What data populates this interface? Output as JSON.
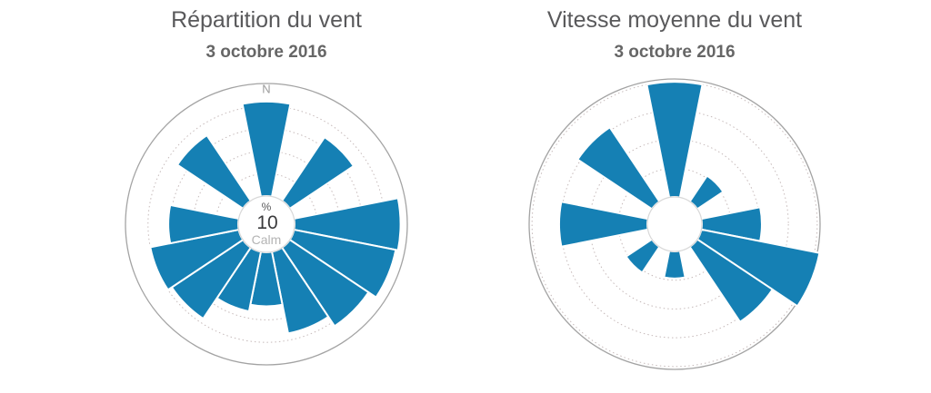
{
  "colors": {
    "background": "#ffffff",
    "sector_fill": "#1580b4",
    "outer_circle_stroke": "#a3a3a3",
    "grid_dotted_stroke": "#c6baba",
    "calm_circle_stroke": "#d8d8d8",
    "title_text": "#59595b",
    "subtitle_text": "#666666",
    "north_label_text": "#9b9b9b",
    "center_value_text": "#3a3a3c",
    "calm_label_text": "#b4b4b4"
  },
  "charts": [
    {
      "title": "Répartition du vent",
      "subtitle": "3 octobre 2016",
      "north_label": "N",
      "center": {
        "unit_label": "%",
        "ring_step_label": "10",
        "calm_label": "Calm"
      },
      "chart_data": {
        "type": "bar",
        "polar": true,
        "variant": "wind-rose",
        "title": "Répartition du vent",
        "subtitle": "3 octobre 2016",
        "units": "%",
        "categories": [
          "N",
          "NNE",
          "NE",
          "ENE",
          "E",
          "ESE",
          "SE",
          "SSE",
          "S",
          "SSW",
          "SW",
          "WSW",
          "W",
          "WNW",
          "NW",
          "NNW"
        ],
        "values": [
          42,
          0,
          34,
          0,
          47,
          46,
          42,
          37,
          24,
          27,
          38,
          40,
          31,
          0,
          35,
          0
        ],
        "ring_values": [
          10,
          20,
          30,
          40
        ],
        "outer_ring_value": 50,
        "sector_width_deg": 22.5,
        "grid": "dotted concentric circles",
        "legend": "none",
        "center_hole_label": "Calm"
      }
    },
    {
      "title": "Vitesse moyenne du vent",
      "subtitle": "3 octobre 2016",
      "north_label": "",
      "center": {
        "unit_label": "",
        "ring_step_label": "",
        "calm_label": ""
      },
      "chart_data": {
        "type": "bar",
        "polar": true,
        "variant": "wind-rose",
        "title": "Vitesse moyenne du vent",
        "subtitle": "3 octobre 2016",
        "units": "",
        "categories": [
          "N",
          "NNE",
          "NE",
          "ENE",
          "E",
          "ESE",
          "SE",
          "SSE",
          "S",
          "SSW",
          "SW",
          "WSW",
          "W",
          "WNW",
          "NW",
          "NNW"
        ],
        "values": [
          20,
          0,
          5.4,
          0,
          10.4,
          20.9,
          15.7,
          0,
          4.7,
          0,
          5.4,
          0,
          15.3,
          0,
          15.5,
          0
        ],
        "ring_values": [
          5,
          10,
          15,
          20
        ],
        "outer_ring_value": 20.5,
        "sector_width_deg": 22.5,
        "grid": "dotted concentric circles",
        "legend": "none"
      }
    }
  ]
}
